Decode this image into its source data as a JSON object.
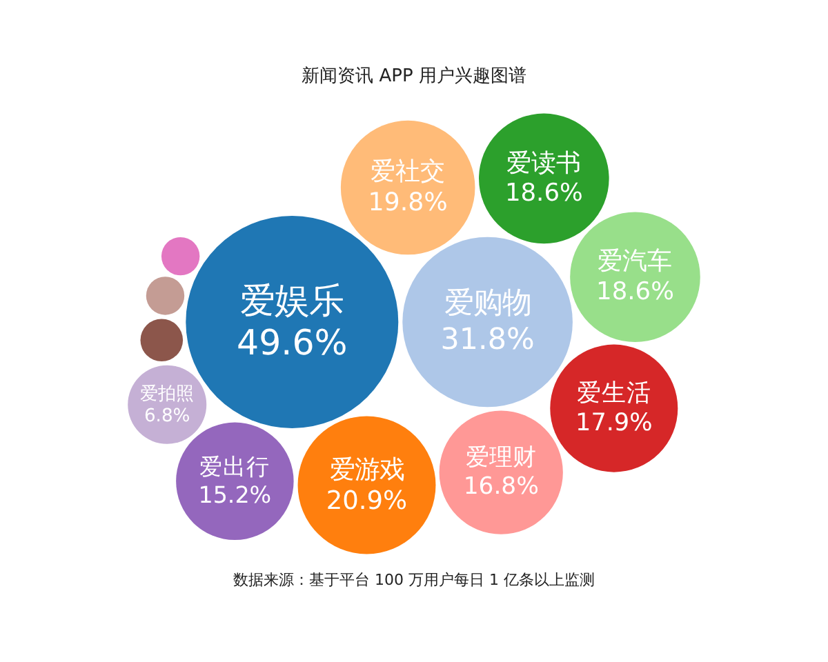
{
  "chart_data": {
    "type": "other",
    "title": "新闻资讯 APP 用户兴趣图谱",
    "categories": [
      "爱娱乐",
      "爱购物",
      "爱社交",
      "爱读书",
      "爱汽车",
      "爱生活",
      "爱理财",
      "爱游戏",
      "爱出行",
      "爱拍照"
    ],
    "values": [
      49.6,
      31.8,
      19.8,
      18.6,
      18.6,
      17.9,
      16.8,
      20.9,
      15.2,
      6.8
    ],
    "value_labels": [
      "49.6%",
      "31.8%",
      "19.8%",
      "18.6%",
      "18.6%",
      "17.9%",
      "16.8%",
      "20.9%",
      "15.2%",
      "6.8%"
    ],
    "colors": [
      "#1f77b4",
      "#aec7e8",
      "#ffbb78",
      "#2ca02c",
      "#98df8a",
      "#d62728",
      "#ff9896",
      "#ff7f0e",
      "#9467bd",
      "#c5b0d5"
    ],
    "annotations": [
      "数据来源：基于平台 100 万用户每日 1 亿条以上监测"
    ]
  }
}
